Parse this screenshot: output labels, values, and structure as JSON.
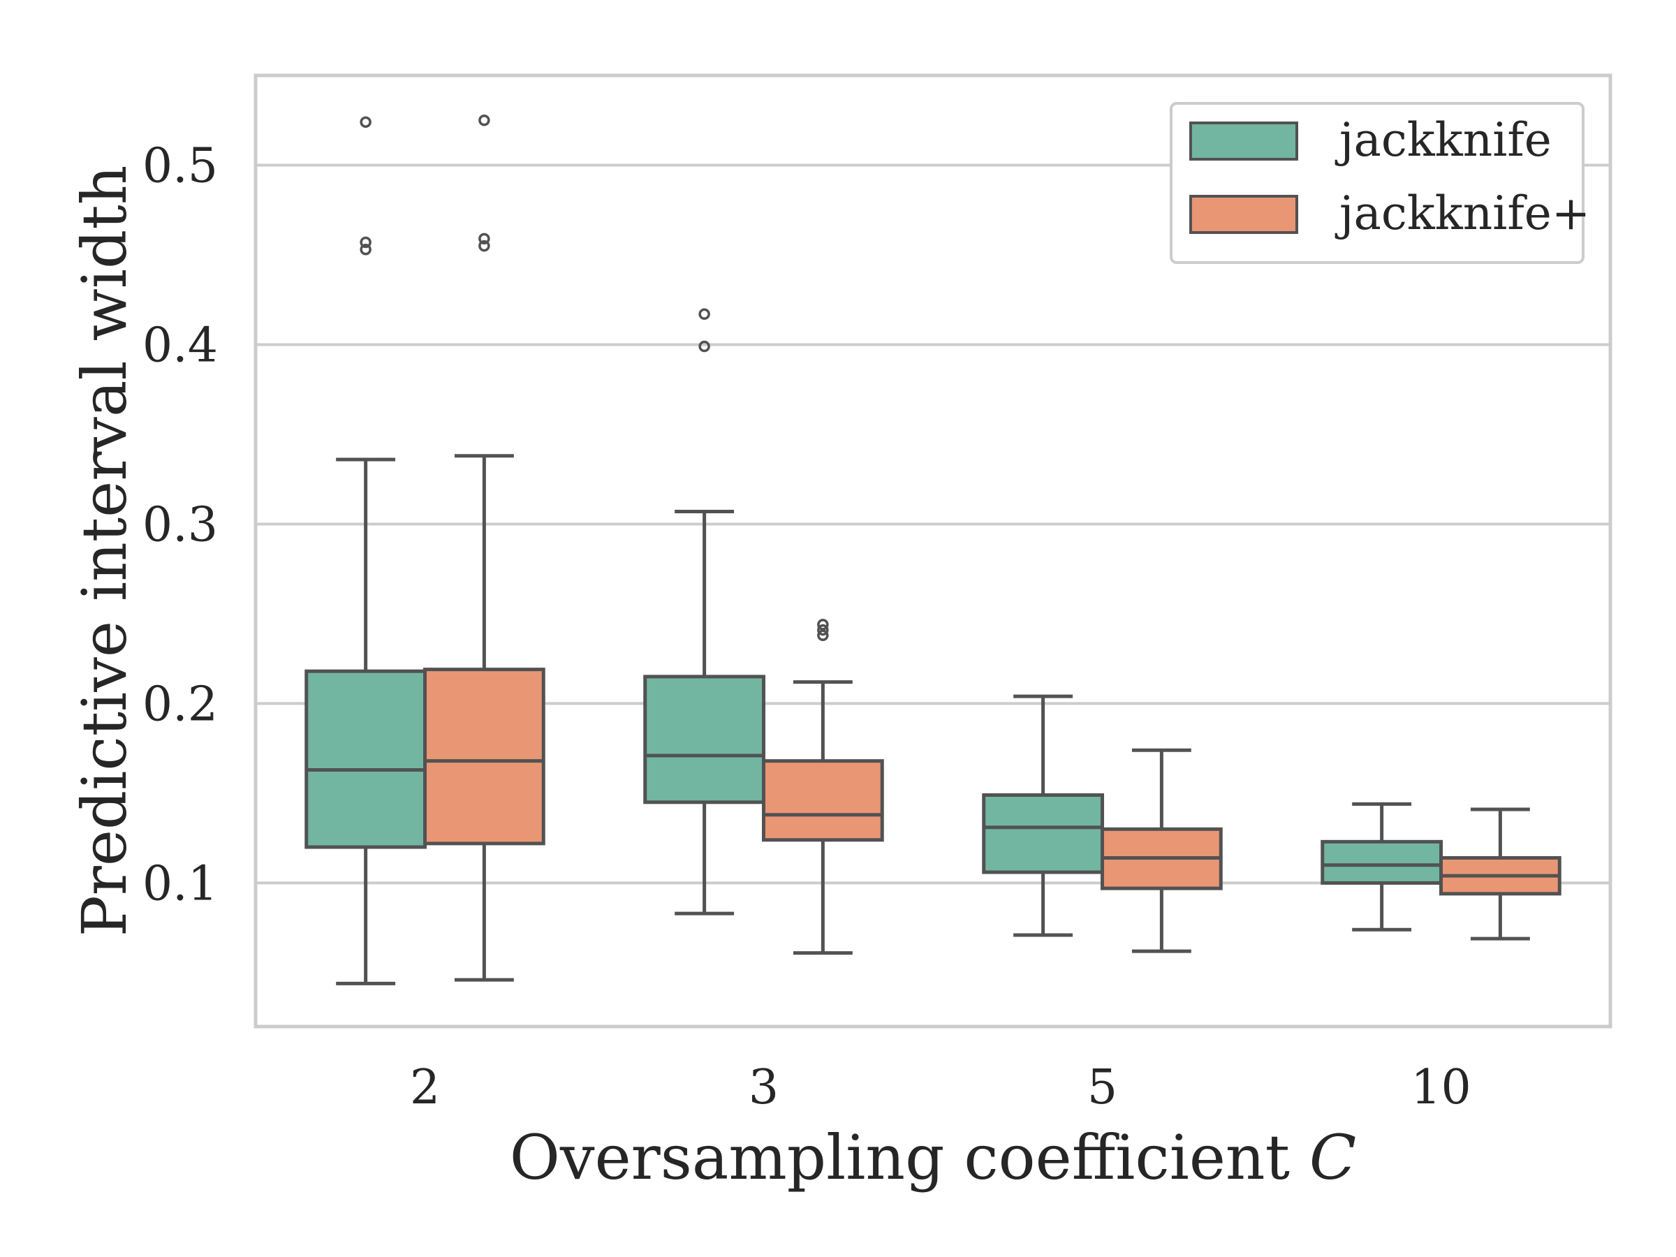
{
  "chart_data": {
    "type": "box",
    "xlabel_text": "Oversampling coefficient ",
    "xlabel_var": "C",
    "ylabel": "Predictive interval width",
    "ylim": [
      0.02,
      0.55
    ],
    "yticks": [
      0.1,
      0.2,
      0.3,
      0.4,
      0.5
    ],
    "ytick_labels": [
      "0.1",
      "0.2",
      "0.3",
      "0.4",
      "0.5"
    ],
    "categories": [
      "2",
      "3",
      "5",
      "10"
    ],
    "grid": "horizontal",
    "legend_position": "top-right",
    "series": [
      {
        "name": "jackknife",
        "color": "#72b6a1",
        "boxes": [
          {
            "whisker_low": 0.044,
            "q1": 0.12,
            "median": 0.163,
            "q3": 0.218,
            "whisker_high": 0.336,
            "outliers": [
              0.453,
              0.457,
              0.524
            ]
          },
          {
            "whisker_low": 0.083,
            "q1": 0.145,
            "median": 0.171,
            "q3": 0.215,
            "whisker_high": 0.307,
            "outliers": [
              0.399,
              0.417
            ]
          },
          {
            "whisker_low": 0.071,
            "q1": 0.106,
            "median": 0.131,
            "q3": 0.149,
            "whisker_high": 0.204,
            "outliers": []
          },
          {
            "whisker_low": 0.074,
            "q1": 0.1,
            "median": 0.11,
            "q3": 0.123,
            "whisker_high": 0.144,
            "outliers": []
          }
        ]
      },
      {
        "name": "jackknife+",
        "color": "#e99675",
        "boxes": [
          {
            "whisker_low": 0.046,
            "q1": 0.122,
            "median": 0.168,
            "q3": 0.219,
            "whisker_high": 0.338,
            "outliers": [
              0.455,
              0.459,
              0.525
            ]
          },
          {
            "whisker_low": 0.061,
            "q1": 0.124,
            "median": 0.138,
            "q3": 0.168,
            "whisker_high": 0.212,
            "outliers": [
              0.238,
              0.241,
              0.244
            ]
          },
          {
            "whisker_low": 0.062,
            "q1": 0.097,
            "median": 0.114,
            "q3": 0.13,
            "whisker_high": 0.174,
            "outliers": []
          },
          {
            "whisker_low": 0.069,
            "q1": 0.094,
            "median": 0.104,
            "q3": 0.114,
            "whisker_high": 0.141,
            "outliers": []
          }
        ]
      }
    ]
  }
}
